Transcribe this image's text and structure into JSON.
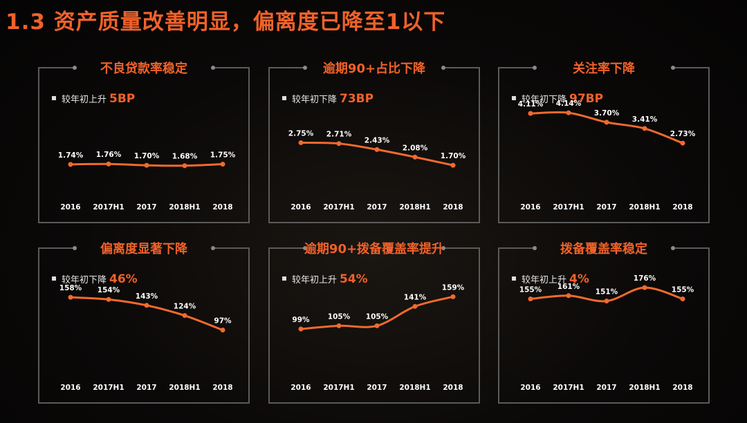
{
  "title": "1.3 资产质量改善明显，偏离度已降至1以下",
  "colors": {
    "accent": "#f0622a",
    "line": "#f26a2e",
    "frame": "#5b5b5b"
  },
  "chart_data": [
    {
      "type": "line",
      "title": "不良贷款率稳定",
      "note_label": "较年初上升",
      "note_value": "5BP",
      "categories": [
        "2016",
        "2017H1",
        "2017",
        "2018H1",
        "2018"
      ],
      "values": [
        1.74,
        1.76,
        1.7,
        1.68,
        1.75
      ],
      "value_labels": [
        "1.74%",
        "1.76%",
        "1.70%",
        "1.68%",
        "1.75%"
      ],
      "ylim": [
        0,
        4.5
      ]
    },
    {
      "type": "line",
      "title": "逾期90+占比下降",
      "note_label": "较年初下降",
      "note_value": "73BP",
      "categories": [
        "2016",
        "2017H1",
        "2017",
        "2018H1",
        "2018"
      ],
      "values": [
        2.75,
        2.71,
        2.43,
        2.08,
        1.7
      ],
      "value_labels": [
        "2.75%",
        "2.71%",
        "2.43%",
        "2.08%",
        "1.70%"
      ],
      "ylim": [
        0,
        4.5
      ]
    },
    {
      "type": "line",
      "title": "关注率下降",
      "note_label": "较年初下降",
      "note_value": "97BP",
      "categories": [
        "2016",
        "2017H1",
        "2017",
        "2018H1",
        "2018"
      ],
      "values": [
        4.11,
        4.14,
        3.7,
        3.41,
        2.73
      ],
      "value_labels": [
        "4.11%",
        "4.14%",
        "3.70%",
        "3.41%",
        "2.73%"
      ],
      "ylim": [
        0,
        4.5
      ]
    },
    {
      "type": "line",
      "title": "偏离度显著下降",
      "note_label": "较年初下降",
      "note_value": "46%",
      "categories": [
        "2016",
        "2017H1",
        "2017",
        "2018H1",
        "2018"
      ],
      "values": [
        158,
        154,
        143,
        124,
        97
      ],
      "value_labels": [
        "158%",
        "154%",
        "143%",
        "124%",
        "97%"
      ],
      "ylim": [
        0,
        180
      ]
    },
    {
      "type": "line",
      "title": "逾期90+拨备覆盖率提升",
      "note_label": "较年初上升",
      "note_value": "54%",
      "categories": [
        "2016",
        "2017H1",
        "2017",
        "2018H1",
        "2018"
      ],
      "values": [
        99,
        105,
        105,
        141,
        159
      ],
      "value_labels": [
        "99%",
        "105%",
        "105%",
        "141%",
        "159%"
      ],
      "ylim": [
        0,
        180
      ]
    },
    {
      "type": "line",
      "title": "拨备覆盖率稳定",
      "note_label": "较年初上升",
      "note_value": "4%",
      "categories": [
        "2016",
        "2017H1",
        "2017",
        "2018H1",
        "2018"
      ],
      "values": [
        155,
        161,
        151,
        176,
        155
      ],
      "value_labels": [
        "155%",
        "161%",
        "151%",
        "176%",
        "155%"
      ],
      "ylim": [
        0,
        180
      ]
    }
  ]
}
